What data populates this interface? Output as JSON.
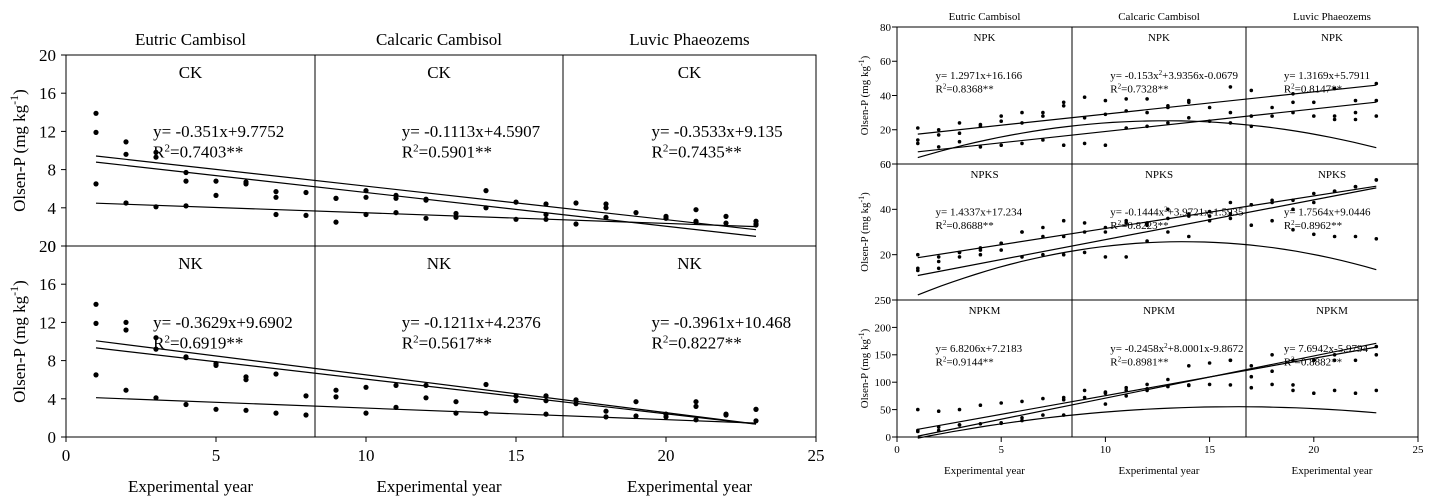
{
  "chart_data": [
    {
      "type": "scatter",
      "figure": "left",
      "ylabel_row_top": "Olsen-P (mg kg-1)",
      "ylabel_row_bottom": "Olsen-P (mg kg-1)",
      "xlabel": "Experimental year",
      "column_titles": [
        "Eutric Cambisol",
        "Calcaric Cambisol",
        "Luvic Phaeozems"
      ],
      "xlim": [
        0,
        25
      ],
      "x_ticks": [
        0,
        5,
        10,
        15,
        20,
        25
      ],
      "ylim": [
        0,
        20
      ],
      "y_ticks": [
        0,
        4,
        8,
        12,
        16,
        20
      ],
      "panels": [
        {
          "row": 0,
          "col": 0,
          "title": "CK",
          "eq": "y= -0.351x+9.7752",
          "r2": "=0.7403**",
          "line": {
            "type": "linear",
            "coef": [
              -0.351,
              9.7752
            ],
            "x": [
              1,
              23
            ]
          },
          "x": [
            1,
            2,
            3,
            4,
            5,
            6,
            7,
            9,
            10,
            11,
            12,
            13,
            14,
            15,
            16,
            17,
            18,
            19,
            20,
            21,
            22,
            23
          ],
          "y": [
            13.9,
            10.9,
            9.3,
            7.7,
            6.8,
            6.5,
            5.7,
            5.0,
            5.8,
            5.3,
            4.8,
            3.4,
            4.0,
            4.6,
            4.4,
            4.5,
            4.0,
            3.5,
            3.1,
            3.8,
            3.1,
            2.6
          ]
        },
        {
          "row": 0,
          "col": 1,
          "title": "CK",
          "eq": "y= -0.1113x+4.5907",
          "r2": "=0.5901**",
          "line": {
            "type": "linear",
            "coef": [
              -0.1113,
              4.5907
            ],
            "x": [
              1,
              23
            ]
          },
          "x": [
            1,
            2,
            3,
            4,
            7,
            8,
            9,
            10,
            11,
            12,
            13,
            16,
            18,
            20,
            21,
            22,
            23
          ],
          "y": [
            6.5,
            4.5,
            4.1,
            4.2,
            3.3,
            3.2,
            2.5,
            3.3,
            3.5,
            2.9,
            3.0,
            2.8,
            3.0,
            2.9,
            2.6,
            2.4,
            2.3
          ]
        },
        {
          "row": 0,
          "col": 2,
          "title": "CK",
          "eq": "y= -0.3533x+9.135",
          "r2": "=0.7435**",
          "line": {
            "type": "linear",
            "coef": [
              -0.3533,
              9.135
            ],
            "x": [
              1,
              23
            ]
          },
          "x": [
            1,
            2,
            3,
            4,
            5,
            6,
            7,
            8,
            9,
            10,
            11,
            12,
            14,
            15,
            16,
            17,
            18,
            21,
            23
          ],
          "y": [
            11.9,
            9.6,
            9.8,
            6.8,
            5.3,
            6.7,
            5.1,
            5.6,
            5.0,
            5.1,
            5.0,
            4.9,
            5.8,
            2.8,
            3.3,
            2.3,
            4.4,
            2.5,
            2.2
          ]
        },
        {
          "row": 1,
          "col": 0,
          "title": "NK",
          "eq": "y= -0.3629x+9.6902",
          "r2": "=0.6919**",
          "line": {
            "type": "linear",
            "coef": [
              -0.3629,
              9.6902
            ],
            "x": [
              1,
              23
            ]
          },
          "x": [
            1,
            2,
            3,
            4,
            5,
            6,
            7,
            8,
            9,
            10,
            11,
            12,
            13,
            14,
            15,
            16,
            17,
            18,
            19,
            20,
            21,
            22,
            23
          ],
          "y": [
            13.9,
            11.2,
            9.2,
            8.4,
            7.5,
            6.0,
            6.6,
            4.3,
            4.2,
            5.2,
            3.1,
            4.1,
            3.7,
            5.5,
            4.3,
            4.3,
            3.5,
            2.7,
            3.7,
            2.4,
            3.7,
            2.4,
            2.9
          ]
        },
        {
          "row": 1,
          "col": 1,
          "title": "NK",
          "eq": "y= -0.1211x+4.2376",
          "r2": "=0.5617**",
          "line": {
            "type": "linear",
            "coef": [
              -0.1211,
              4.2376
            ],
            "x": [
              1,
              23
            ]
          },
          "x": [
            1,
            2,
            3,
            4,
            5,
            6,
            7,
            8,
            10,
            13,
            14,
            16,
            18,
            19,
            20,
            21,
            22,
            23
          ],
          "y": [
            6.5,
            4.9,
            4.1,
            3.4,
            2.9,
            2.8,
            2.5,
            2.3,
            2.5,
            2.5,
            2.5,
            2.4,
            2.1,
            2.2,
            2.1,
            1.8,
            2.3,
            1.7
          ]
        },
        {
          "row": 1,
          "col": 2,
          "title": "NK",
          "eq": "y= -0.3961x+10.468",
          "r2": "=0.8227**",
          "line": {
            "type": "linear",
            "coef": [
              -0.3961,
              10.468
            ],
            "x": [
              1,
              23
            ]
          },
          "x": [
            1,
            2,
            3,
            4,
            5,
            6,
            9,
            11,
            12,
            15,
            16,
            17,
            21,
            23
          ],
          "y": [
            11.9,
            12.0,
            10.4,
            8.3,
            7.7,
            6.3,
            4.9,
            5.4,
            5.4,
            3.8,
            3.8,
            3.9,
            3.2,
            2.9
          ]
        }
      ]
    },
    {
      "type": "scatter",
      "figure": "right",
      "ylabel": "Olsen-P (mg kg-1)",
      "xlabel": "Experimental year",
      "column_titles": [
        "Eutric Cambisol",
        "Calcaric Cambisol",
        "Luvic Phaeozems"
      ],
      "xlim": [
        0,
        25
      ],
      "x_ticks": [
        0,
        5,
        10,
        15,
        20,
        25
      ],
      "rows": [
        {
          "ylim": [
            0,
            80
          ],
          "y_ticks": [
            0,
            20,
            40,
            60,
            80
          ]
        },
        {
          "ylim": [
            0,
            60
          ],
          "y_ticks": [
            0,
            20,
            40,
            60
          ]
        },
        {
          "ylim": [
            0,
            250
          ],
          "y_ticks": [
            0,
            50,
            100,
            150,
            200,
            250
          ]
        }
      ],
      "panels": [
        {
          "row": 0,
          "col": 0,
          "title": "NPK",
          "eq": "y= 1.2971x+16.166",
          "r2": "=0.8368**",
          "line": {
            "type": "linear",
            "coef": [
              1.2971,
              16.166
            ],
            "x": [
              1,
              23
            ]
          },
          "x": [
            1,
            2,
            3,
            4,
            5,
            6,
            7,
            8,
            9,
            10,
            11,
            12,
            13,
            14,
            16,
            17,
            19,
            20,
            21,
            22,
            23
          ],
          "y": [
            14,
            17,
            18,
            23,
            25,
            24,
            28,
            34,
            27,
            29,
            31,
            30,
            34,
            36,
            45,
            43,
            41,
            36,
            44,
            37,
            47
          ]
        },
        {
          "row": 0,
          "col": 1,
          "title": "NPK",
          "eq": "y= -0.153x +3.9356x-0.0679",
          "r2": "=0.7328**",
          "line": {
            "type": "quad",
            "coef": [
              -0.153,
              3.9356,
              -0.0679
            ],
            "x": [
              1,
              23
            ]
          },
          "x": [
            1,
            2,
            3,
            4,
            5,
            6,
            7,
            8,
            9,
            10,
            11,
            12,
            13,
            14,
            15,
            16,
            17,
            18,
            19,
            20,
            21,
            22,
            23
          ],
          "y": [
            21,
            20,
            24,
            22,
            28,
            30,
            30,
            36,
            39,
            37,
            38,
            38,
            33,
            37,
            33,
            30,
            28,
            33,
            30,
            28,
            26,
            26,
            28
          ]
        },
        {
          "row": 0,
          "col": 2,
          "title": "NPK",
          "eq": "y= 1.3169x+5.7911",
          "r2": "=0.8147**",
          "line": {
            "type": "linear",
            "coef": [
              1.3169,
              5.7911
            ],
            "x": [
              1,
              23
            ]
          },
          "x": [
            1,
            2,
            3,
            4,
            5,
            6,
            7,
            8,
            9,
            10,
            11,
            12,
            13,
            14,
            15,
            16,
            17,
            18,
            19,
            21,
            22,
            23
          ],
          "y": [
            12,
            10,
            13,
            10,
            11,
            12,
            14,
            11,
            12,
            11,
            21,
            22,
            24,
            27,
            25,
            24,
            22,
            28,
            36,
            28,
            30,
            37
          ]
        },
        {
          "row": 1,
          "col": 0,
          "title": "NPKS",
          "eq": "y= 1.4337x+17.234",
          "r2": "=0.8688**",
          "line": {
            "type": "linear",
            "coef": [
              1.4337,
              17.234
            ],
            "x": [
              1,
              23
            ]
          },
          "x": [
            1,
            2,
            3,
            4,
            5,
            6,
            7,
            8,
            9,
            10,
            11,
            12,
            13,
            14,
            15,
            16,
            17,
            18,
            19,
            20,
            21,
            22,
            23
          ],
          "y": [
            14,
            17,
            19,
            20,
            22,
            30,
            32,
            35,
            34,
            30,
            34,
            34,
            36,
            38,
            39,
            43,
            42,
            44,
            40,
            43,
            48,
            50,
            53
          ]
        },
        {
          "row": 1,
          "col": 1,
          "title": "NPKS",
          "eq": "y= -0.1444x +3.9721x-1.5935",
          "r2": "=0.8223**",
          "line": {
            "type": "quad",
            "coef": [
              -0.1444,
              3.9721,
              -1.5935
            ],
            "x": [
              1,
              23
            ]
          },
          "x": [
            1,
            2,
            3,
            4,
            5,
            6,
            7,
            8,
            9,
            10,
            11,
            12,
            13,
            14,
            15,
            16,
            17,
            18,
            19,
            20,
            21,
            22,
            23
          ],
          "y": [
            20,
            19,
            21,
            23,
            25,
            30,
            28,
            28,
            30,
            32,
            35,
            33,
            40,
            37,
            37,
            36,
            33,
            35,
            31,
            29,
            28,
            28,
            27
          ]
        },
        {
          "row": 1,
          "col": 2,
          "title": "NPKS",
          "eq": "y= 1.7564x+9.0446",
          "r2": "=0.8962**",
          "line": {
            "type": "linear",
            "coef": [
              1.7564,
              9.0446
            ],
            "x": [
              1,
              23
            ]
          },
          "x": [
            1,
            2,
            3,
            4,
            5,
            6,
            7,
            8,
            9,
            10,
            11,
            12,
            13,
            14,
            15,
            16,
            17,
            18,
            19,
            20,
            21,
            22,
            23
          ],
          "y": [
            13,
            14,
            21,
            22,
            25,
            19,
            20,
            20,
            21,
            19,
            19,
            26,
            30,
            28,
            35,
            38,
            42,
            43,
            44,
            47,
            48,
            50,
            53
          ]
        },
        {
          "row": 2,
          "col": 0,
          "title": "NPKM",
          "eq": "y= 6.8206x+7.2183",
          "r2": "=0.9144**",
          "line": {
            "type": "linear",
            "coef": [
              6.8206,
              7.2183
            ],
            "x": [
              1,
              23
            ]
          },
          "x": [
            1,
            2,
            3,
            4,
            5,
            6,
            7,
            8,
            9,
            10,
            11,
            12,
            13,
            14,
            15,
            16,
            17,
            18,
            19,
            20,
            21,
            22,
            23
          ],
          "y": [
            12,
            18,
            22,
            24,
            26,
            35,
            40,
            68,
            85,
            82,
            90,
            96,
            105,
            130,
            135,
            140,
            130,
            150,
            140,
            140,
            140,
            140,
            150
          ]
        },
        {
          "row": 2,
          "col": 1,
          "title": "NPKM",
          "eq": "y= -0.2458x +8.0001x-9.8672",
          "r2": "=0.8981**",
          "line": {
            "type": "quad",
            "coef": [
              -0.2458,
              8.0001,
              -9.8672
            ],
            "x": [
              1,
              23
            ]
          },
          "x": [
            1,
            2,
            3,
            4,
            5,
            6,
            7,
            8,
            9,
            10,
            11,
            12,
            13,
            14,
            15,
            16,
            17,
            18,
            19,
            20,
            21,
            22,
            23
          ],
          "y": [
            50,
            47,
            50,
            58,
            62,
            65,
            70,
            72,
            72,
            80,
            85,
            88,
            92,
            94,
            96,
            95,
            90,
            96,
            85,
            80,
            85,
            80,
            85
          ]
        },
        {
          "row": 2,
          "col": 2,
          "title": "NPKM",
          "eq": "y= 7.6942x-5.9794",
          "r2": "=0.8882**",
          "line": {
            "type": "linear",
            "coef": [
              7.6942,
              -5.9794
            ],
            "x": [
              1,
              23
            ]
          },
          "x": [
            1,
            2,
            3,
            5,
            6,
            8,
            10,
            11,
            12,
            14,
            16,
            17,
            18,
            19,
            21,
            23
          ],
          "y": [
            10,
            12,
            22,
            25,
            30,
            40,
            60,
            75,
            85,
            95,
            140,
            110,
            120,
            95,
            150,
            165
          ]
        }
      ]
    }
  ]
}
